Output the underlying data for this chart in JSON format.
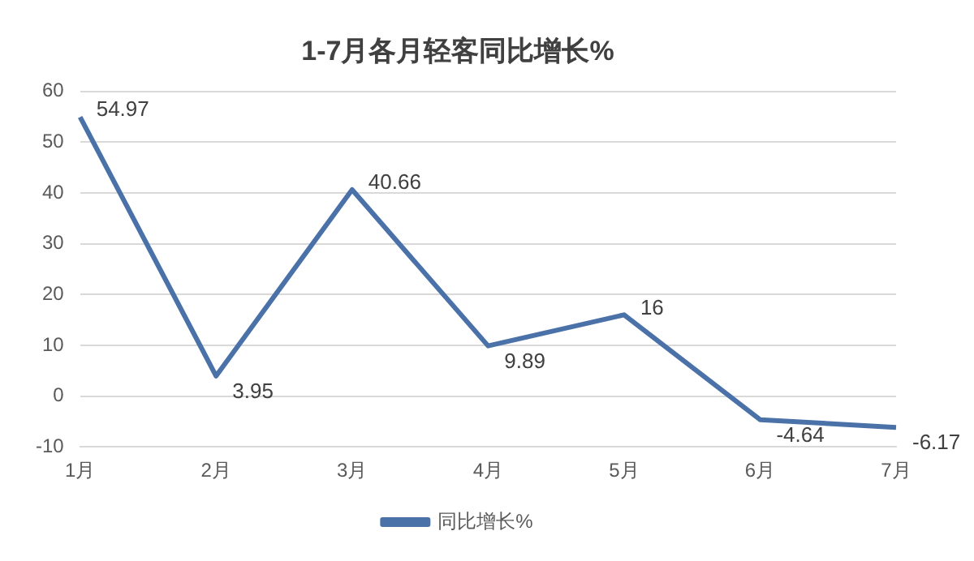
{
  "chart_data": {
    "type": "line",
    "title": "1-7月各月轻客同比增长%",
    "categories": [
      "1月",
      "2月",
      "3月",
      "4月",
      "5月",
      "6月",
      "7月"
    ],
    "series": [
      {
        "name": "同比增长%",
        "color": "#4a72a8",
        "values": [
          54.97,
          3.95,
          40.66,
          9.89,
          16,
          -4.64,
          -6.17
        ]
      }
    ],
    "ylim": [
      -10,
      60
    ],
    "yticks": [
      -10,
      0,
      10,
      20,
      30,
      40,
      50,
      60
    ],
    "grid": "y",
    "legend": "bottom",
    "data_labels": true,
    "marker": "none",
    "line_style": "solid"
  }
}
